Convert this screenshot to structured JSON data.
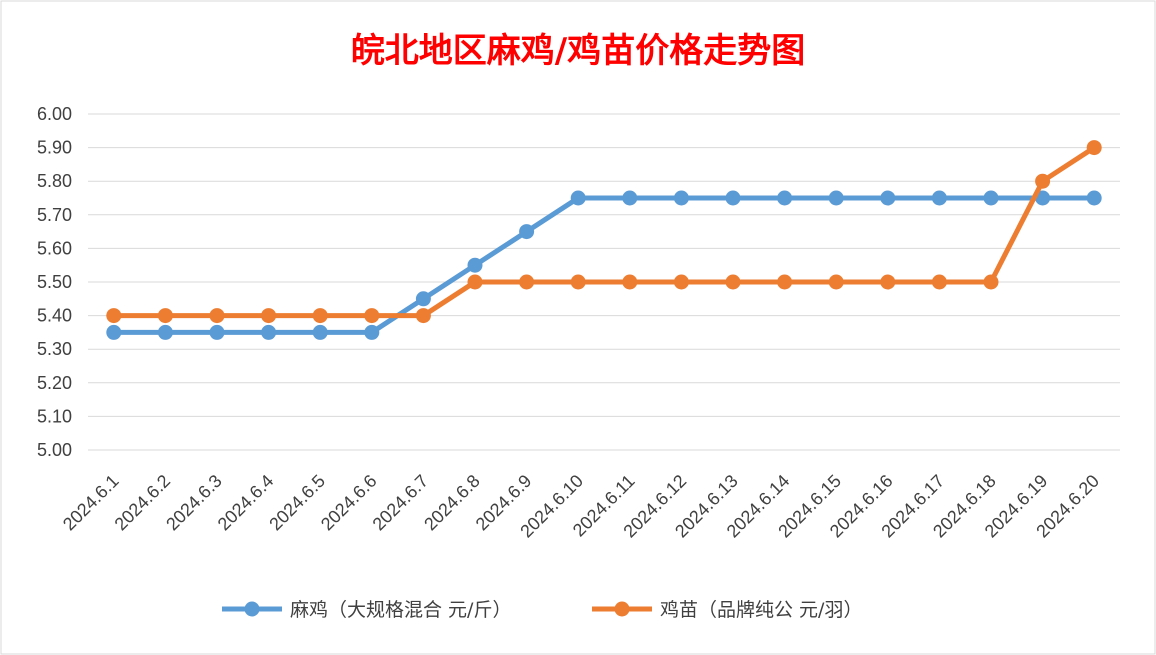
{
  "chart_data": {
    "type": "line",
    "title": "皖北地区麻鸡/鸡苗价格走势图",
    "title_color": "#ff0000",
    "categories": [
      "2024.6.1",
      "2024.6.2",
      "2024.6.3",
      "2024.6.4",
      "2024.6.5",
      "2024.6.6",
      "2024.6.7",
      "2024.6.8",
      "2024.6.9",
      "2024.6.10",
      "2024.6.11",
      "2024.6.12",
      "2024.6.13",
      "2024.6.14",
      "2024.6.15",
      "2024.6.16",
      "2024.6.17",
      "2024.6.18",
      "2024.6.19",
      "2024.6.20"
    ],
    "series": [
      {
        "name": "麻鸡（大规格混合 元/斤）",
        "color": "#5b9bd5",
        "values": [
          5.35,
          5.35,
          5.35,
          5.35,
          5.35,
          5.35,
          5.45,
          5.55,
          5.65,
          5.75,
          5.75,
          5.75,
          5.75,
          5.75,
          5.75,
          5.75,
          5.75,
          5.75,
          5.75,
          5.75
        ]
      },
      {
        "name": "鸡苗（品牌纯公 元/羽）",
        "color": "#ed7d31",
        "values": [
          5.4,
          5.4,
          5.4,
          5.4,
          5.4,
          5.4,
          5.4,
          5.5,
          5.5,
          5.5,
          5.5,
          5.5,
          5.5,
          5.5,
          5.5,
          5.5,
          5.5,
          5.5,
          5.8,
          5.9
        ]
      }
    ],
    "y_ticks": [
      "5.00",
      "5.10",
      "5.20",
      "5.30",
      "5.40",
      "5.50",
      "5.60",
      "5.70",
      "5.80",
      "5.90",
      "6.00"
    ],
    "ylim": [
      5.0,
      6.0
    ],
    "xlabel": "",
    "ylabel": "",
    "grid": true,
    "legend_position": "bottom"
  }
}
